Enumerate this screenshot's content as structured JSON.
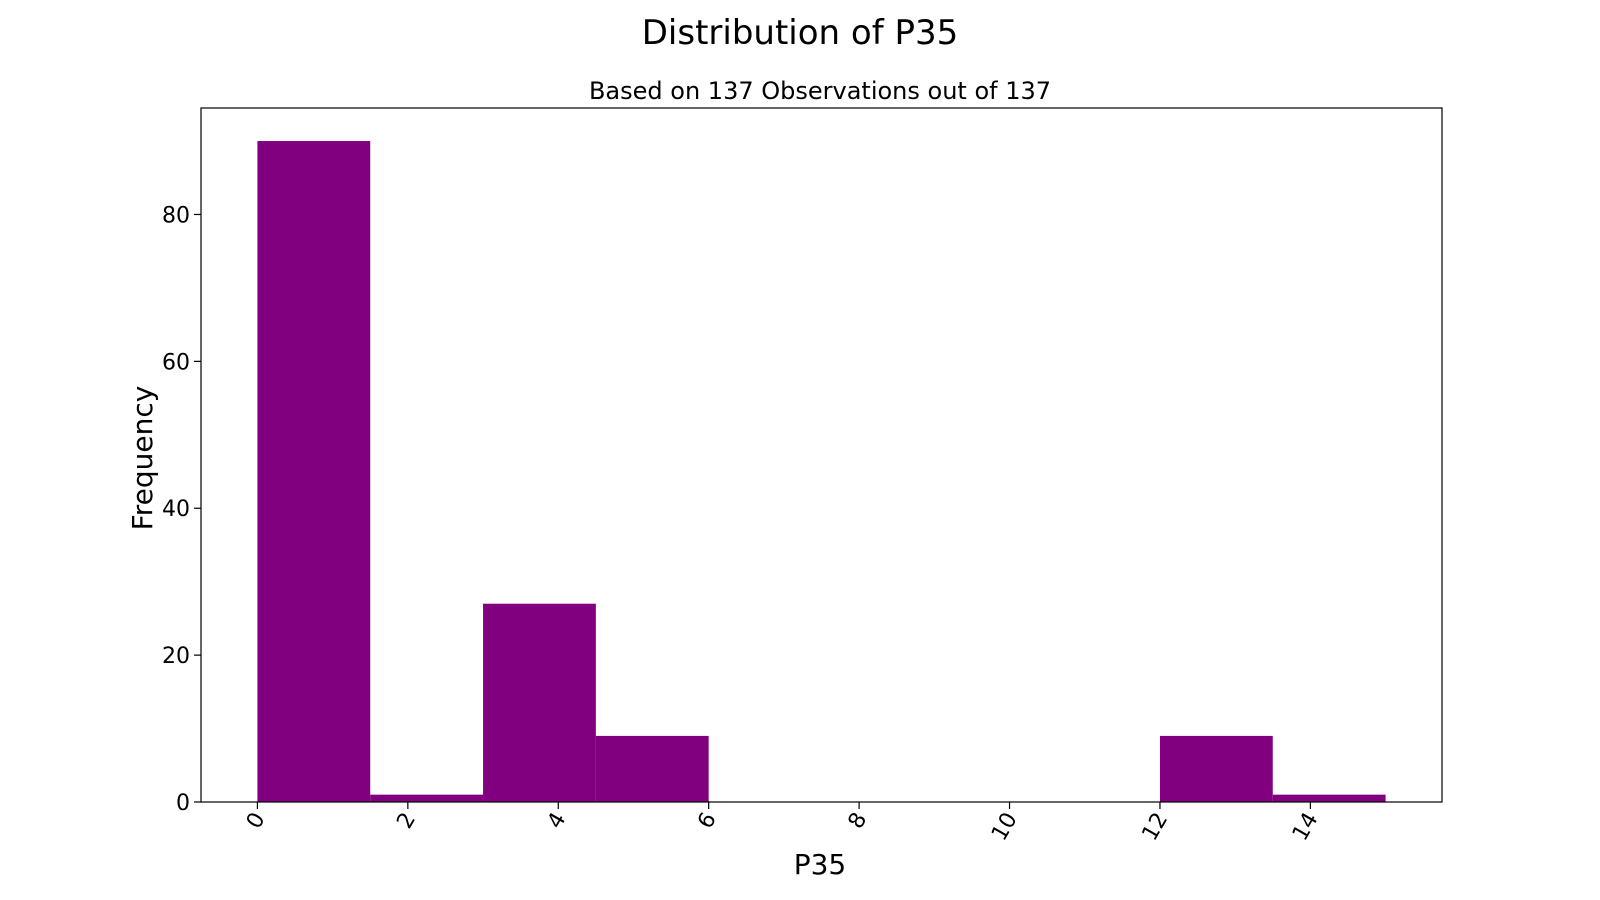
{
  "chart_data": {
    "type": "bar",
    "title": "Distribution of P35",
    "subtitle": "Based on 137 Observations out of 137",
    "xlabel": "P35",
    "ylabel": "Frequency",
    "bins": [
      {
        "start": 0.0,
        "end": 1.5,
        "count": 90
      },
      {
        "start": 1.5,
        "end": 3.0,
        "count": 1
      },
      {
        "start": 3.0,
        "end": 4.5,
        "count": 27
      },
      {
        "start": 4.5,
        "end": 6.0,
        "count": 9
      },
      {
        "start": 6.0,
        "end": 7.5,
        "count": 0
      },
      {
        "start": 7.5,
        "end": 9.0,
        "count": 0
      },
      {
        "start": 9.0,
        "end": 10.5,
        "count": 0
      },
      {
        "start": 10.5,
        "end": 12.0,
        "count": 0
      },
      {
        "start": 12.0,
        "end": 13.5,
        "count": 9
      },
      {
        "start": 13.5,
        "end": 15.0,
        "count": 1
      }
    ],
    "xlim": [
      -0.75,
      15.75
    ],
    "ylim": [
      0,
      94.5
    ],
    "xticks": [
      0,
      2,
      4,
      6,
      8,
      10,
      12,
      14
    ],
    "xtick_labels": [
      "0",
      "2",
      "4",
      "6",
      "8",
      "10",
      "12",
      "14"
    ],
    "yticks": [
      0,
      20,
      40,
      60,
      80
    ],
    "ytick_labels": [
      "0",
      "20",
      "40",
      "60",
      "80"
    ],
    "bar_color": "#800080",
    "grid": false,
    "legend": "none"
  }
}
